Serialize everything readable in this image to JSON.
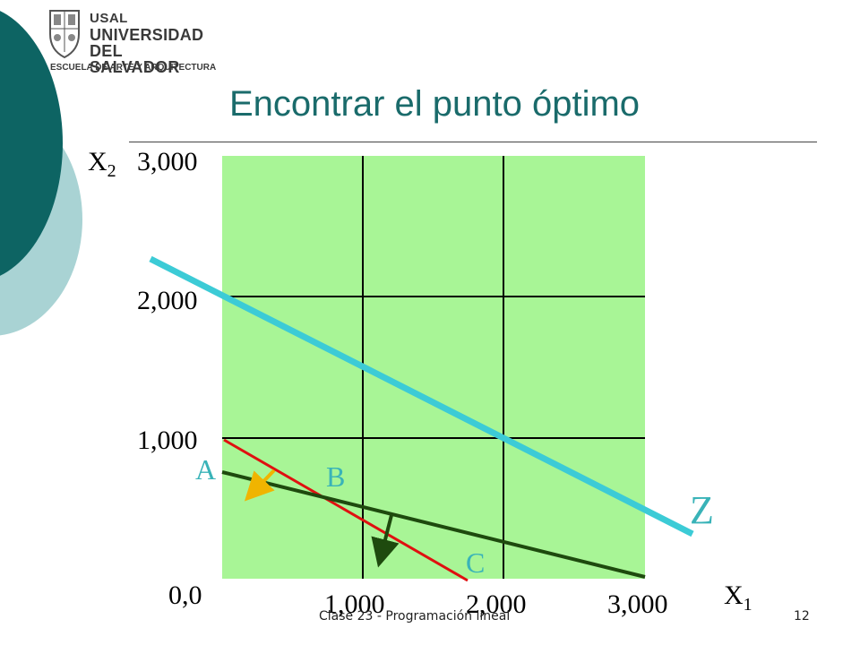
{
  "logo": {
    "line1": "USAL",
    "line2": "UNIVERSIDAD",
    "line3": "DEL SALVADOR",
    "line4": "ESCUELA DE ARTE Y ARQUITECTURA"
  },
  "title": "Encontrar el punto óptimo",
  "graph": {
    "x_axis": {
      "name": "X",
      "sub": "1"
    },
    "y_axis": {
      "name": "X",
      "sub": "2"
    },
    "origin_label": "0,0",
    "x_ticks": [
      "1,000",
      "2,000",
      "3,000"
    ],
    "y_ticks": [
      "1,000",
      "2,000",
      "3,000"
    ],
    "points": {
      "a": "A",
      "b": "B",
      "c": "C"
    },
    "objective_label": "Z",
    "colors": {
      "region": "#a8f596",
      "objective": "#3ccbd6",
      "constraint_red": "#e01010",
      "constraint_green": "#1e4a0e",
      "arrow_yellow": "#f0b400",
      "deco_dark": "#0d6463",
      "deco_light": "#a9d3d4"
    }
  },
  "footer": {
    "caption": "Clase 23 - Programación lineal",
    "page": "12"
  }
}
